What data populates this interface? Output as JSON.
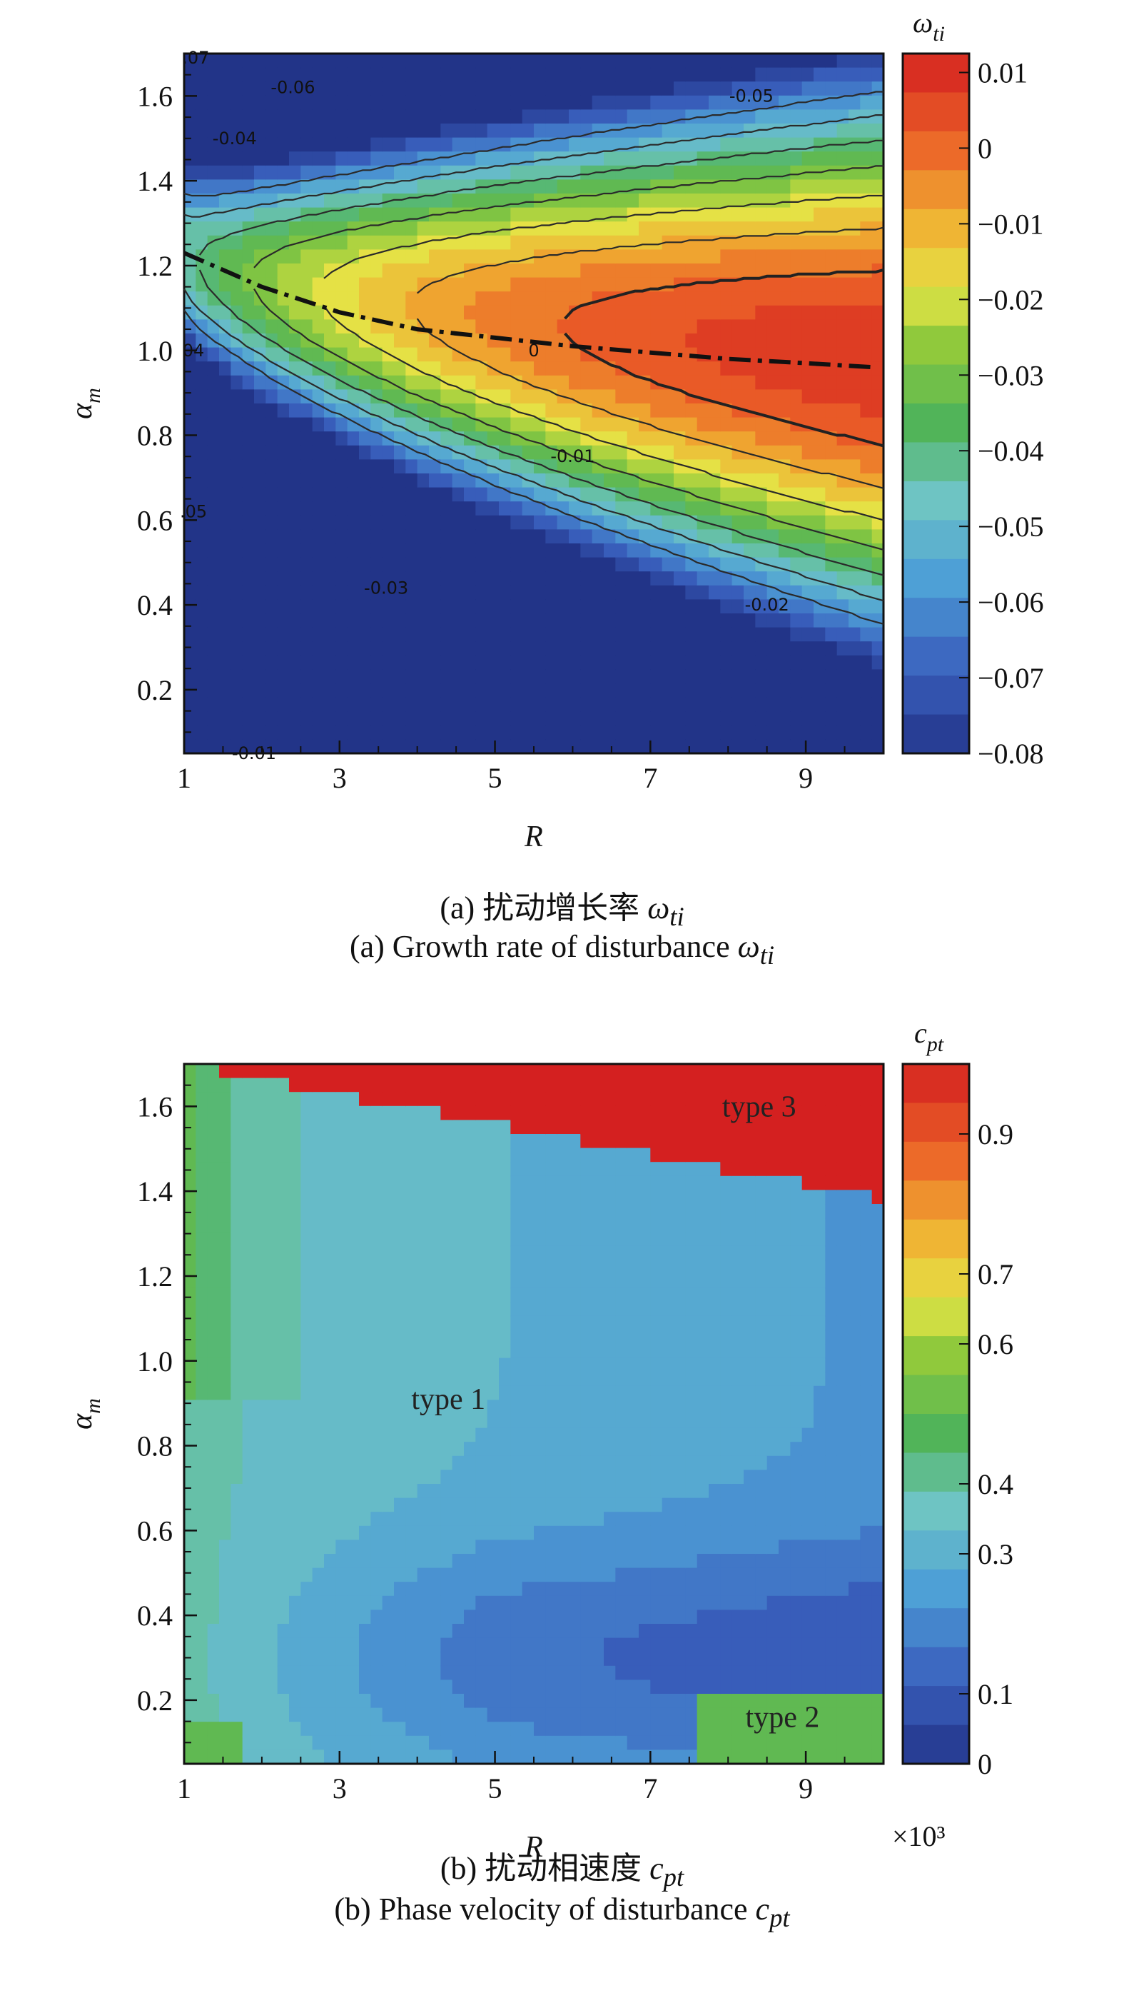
{
  "chart_data": [
    {
      "type": "heatmap",
      "xlabel": "R",
      "ylabel": "α_m",
      "xlim": [
        1,
        10
      ],
      "ylim": [
        0.05,
        1.7
      ],
      "xticks": [
        1,
        3,
        5,
        7,
        9
      ],
      "xtick_labels": [
        "1",
        "3",
        "5",
        "7",
        "9"
      ],
      "yticks": [
        0.2,
        0.4,
        0.6,
        0.8,
        1.0,
        1.2,
        1.4,
        1.6
      ],
      "ytick_labels": [
        "0.2",
        "0.4",
        "0.6",
        "0.8",
        "1.0",
        "1.2",
        "1.4",
        "1.6"
      ],
      "colorbar": {
        "title": "ω_ti",
        "range": [
          -0.08,
          0.0125
        ],
        "ticks": [
          0.01,
          0,
          -0.01,
          -0.02,
          -0.03,
          -0.04,
          -0.05,
          -0.06,
          -0.07,
          -0.08
        ],
        "tick_labels": [
          "0.01",
          "0",
          "−0.01",
          "−0.02",
          "−0.03",
          "−0.04",
          "−0.05",
          "−0.06",
          "−0.07",
          "−0.08"
        ]
      },
      "contour_labels": [
        "-0.06",
        "-0.05",
        "-0.04",
        "0",
        "-0.01",
        "-0.03",
        "-0.02",
        ".07",
        ".05",
        "04",
        "-0.01"
      ],
      "max_growth_curve": [
        [
          1.0,
          1.23
        ],
        [
          2.0,
          1.15
        ],
        [
          3.0,
          1.09
        ],
        [
          4.0,
          1.05
        ],
        [
          5.0,
          1.03
        ],
        [
          6.0,
          1.01
        ],
        [
          7.0,
          0.995
        ],
        [
          8.0,
          0.98
        ],
        [
          9.0,
          0.97
        ],
        [
          9.9,
          0.96
        ]
      ],
      "caption_cn": "(a) 扰动增长率",
      "caption_en": "(a) Growth rate of disturbance",
      "caption_symbol": "ω",
      "caption_sub": "ti"
    },
    {
      "type": "heatmap",
      "xlabel": "R",
      "ylabel": "α_m",
      "xlim": [
        1,
        10
      ],
      "ylim": [
        0.05,
        1.7
      ],
      "xticks": [
        1,
        3,
        5,
        7,
        9
      ],
      "xtick_labels": [
        "1",
        "3",
        "5",
        "7",
        "9"
      ],
      "yticks": [
        0.2,
        0.4,
        0.6,
        0.8,
        1.0,
        1.2,
        1.4,
        1.6
      ],
      "ytick_labels": [
        "0.2",
        "0.4",
        "0.6",
        "0.8",
        "1.0",
        "1.2",
        "1.4",
        "1.6"
      ],
      "x_multiplier": "×10³",
      "colorbar": {
        "title": "c_pt",
        "range": [
          0,
          1.0
        ],
        "ticks": [
          0.9,
          0.7,
          0.6,
          0.4,
          0.3,
          0.1,
          0
        ],
        "tick_labels": [
          "0.9",
          "0.7",
          "0.6",
          "0.4",
          "0.3",
          "0.1",
          "0"
        ]
      },
      "region_labels": [
        "type 1",
        "type 2",
        "type 3"
      ],
      "caption_cn": "(b) 扰动相速度",
      "caption_en": "(b) Phase velocity of disturbance",
      "caption_symbol": "c",
      "caption_sub": "pt"
    }
  ]
}
